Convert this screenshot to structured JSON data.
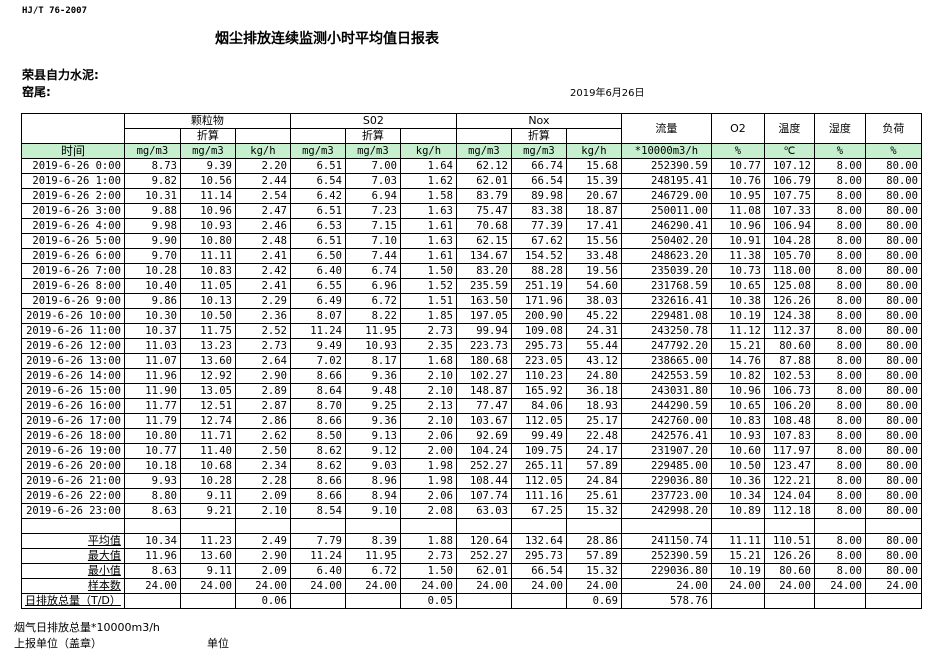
{
  "header": {
    "standard": "HJ/T  76-2007",
    "title": "烟尘排放连续监测小时平均值日报表",
    "company": "荣县自力水泥:",
    "kiln": "窑尾:",
    "date": "2019年6月26日"
  },
  "table": {
    "groups": {
      "pm": "颗粒物",
      "so2": "S02",
      "nox": "Nox",
      "flow": "流量",
      "o2": "O2",
      "temp": "温度",
      "humidity": "湿度",
      "load": "负荷",
      "converted": "折算"
    },
    "units": [
      "时间",
      "mg/m3",
      "mg/m3",
      "kg/h",
      "mg/m3",
      "mg/m3",
      "kg/h",
      "mg/m3",
      "mg/m3",
      "kg/h",
      "*10000m3/h",
      "%",
      "℃",
      "%",
      "%"
    ],
    "rows": [
      [
        "2019-6-26 0:00",
        "8.73",
        "9.39",
        "2.20",
        "6.51",
        "7.00",
        "1.64",
        "62.12",
        "66.74",
        "15.68",
        "252390.59",
        "10.77",
        "107.12",
        "8.00",
        "80.00"
      ],
      [
        "2019-6-26 1:00",
        "9.82",
        "10.56",
        "2.44",
        "6.54",
        "7.03",
        "1.62",
        "62.01",
        "66.54",
        "15.39",
        "248195.41",
        "10.76",
        "106.79",
        "8.00",
        "80.00"
      ],
      [
        "2019-6-26 2:00",
        "10.31",
        "11.14",
        "2.54",
        "6.42",
        "6.94",
        "1.58",
        "83.79",
        "89.98",
        "20.67",
        "246729.00",
        "10.95",
        "107.75",
        "8.00",
        "80.00"
      ],
      [
        "2019-6-26 3:00",
        "9.88",
        "10.96",
        "2.47",
        "6.51",
        "7.23",
        "1.63",
        "75.47",
        "83.38",
        "18.87",
        "250011.00",
        "11.08",
        "107.33",
        "8.00",
        "80.00"
      ],
      [
        "2019-6-26 4:00",
        "9.98",
        "10.93",
        "2.46",
        "6.53",
        "7.15",
        "1.61",
        "70.68",
        "77.39",
        "17.41",
        "246290.41",
        "10.96",
        "106.94",
        "8.00",
        "80.00"
      ],
      [
        "2019-6-26 5:00",
        "9.90",
        "10.80",
        "2.48",
        "6.51",
        "7.10",
        "1.63",
        "62.15",
        "67.62",
        "15.56",
        "250402.20",
        "10.91",
        "104.28",
        "8.00",
        "80.00"
      ],
      [
        "2019-6-26 6:00",
        "9.70",
        "11.11",
        "2.41",
        "6.50",
        "7.44",
        "1.61",
        "134.67",
        "154.52",
        "33.48",
        "248623.20",
        "11.38",
        "105.70",
        "8.00",
        "80.00"
      ],
      [
        "2019-6-26 7:00",
        "10.28",
        "10.83",
        "2.42",
        "6.40",
        "6.74",
        "1.50",
        "83.20",
        "88.28",
        "19.56",
        "235039.20",
        "10.73",
        "118.00",
        "8.00",
        "80.00"
      ],
      [
        "2019-6-26 8:00",
        "10.40",
        "11.05",
        "2.41",
        "6.55",
        "6.96",
        "1.52",
        "235.59",
        "251.19",
        "54.60",
        "231768.59",
        "10.65",
        "125.08",
        "8.00",
        "80.00"
      ],
      [
        "2019-6-26 9:00",
        "9.86",
        "10.13",
        "2.29",
        "6.49",
        "6.72",
        "1.51",
        "163.50",
        "171.96",
        "38.03",
        "232616.41",
        "10.38",
        "126.26",
        "8.00",
        "80.00"
      ],
      [
        "2019-6-26 10:00",
        "10.30",
        "10.50",
        "2.36",
        "8.07",
        "8.22",
        "1.85",
        "197.05",
        "200.90",
        "45.22",
        "229481.08",
        "10.19",
        "124.38",
        "8.00",
        "80.00"
      ],
      [
        "2019-6-26 11:00",
        "10.37",
        "11.75",
        "2.52",
        "11.24",
        "11.95",
        "2.73",
        "99.94",
        "109.08",
        "24.31",
        "243250.78",
        "11.12",
        "112.37",
        "8.00",
        "80.00"
      ],
      [
        "2019-6-26 12:00",
        "11.03",
        "13.23",
        "2.73",
        "9.49",
        "10.93",
        "2.35",
        "223.73",
        "295.73",
        "55.44",
        "247792.20",
        "15.21",
        "80.60",
        "8.00",
        "80.00"
      ],
      [
        "2019-6-26 13:00",
        "11.07",
        "13.60",
        "2.64",
        "7.02",
        "8.17",
        "1.68",
        "180.68",
        "223.05",
        "43.12",
        "238665.00",
        "14.76",
        "87.88",
        "8.00",
        "80.00"
      ],
      [
        "2019-6-26 14:00",
        "11.96",
        "12.92",
        "2.90",
        "8.66",
        "9.36",
        "2.10",
        "102.27",
        "110.23",
        "24.80",
        "242553.59",
        "10.82",
        "102.53",
        "8.00",
        "80.00"
      ],
      [
        "2019-6-26 15:00",
        "11.90",
        "13.05",
        "2.89",
        "8.64",
        "9.48",
        "2.10",
        "148.87",
        "165.92",
        "36.18",
        "243031.80",
        "10.96",
        "106.73",
        "8.00",
        "80.00"
      ],
      [
        "2019-6-26 16:00",
        "11.77",
        "12.51",
        "2.87",
        "8.70",
        "9.25",
        "2.13",
        "77.47",
        "84.06",
        "18.93",
        "244290.59",
        "10.65",
        "106.20",
        "8.00",
        "80.00"
      ],
      [
        "2019-6-26 17:00",
        "11.79",
        "12.74",
        "2.86",
        "8.66",
        "9.36",
        "2.10",
        "103.67",
        "112.05",
        "25.17",
        "242760.00",
        "10.83",
        "108.48",
        "8.00",
        "80.00"
      ],
      [
        "2019-6-26 18:00",
        "10.80",
        "11.71",
        "2.62",
        "8.50",
        "9.13",
        "2.06",
        "92.69",
        "99.49",
        "22.48",
        "242576.41",
        "10.93",
        "107.83",
        "8.00",
        "80.00"
      ],
      [
        "2019-6-26 19:00",
        "10.77",
        "11.40",
        "2.50",
        "8.62",
        "9.12",
        "2.00",
        "104.24",
        "109.75",
        "24.17",
        "231907.20",
        "10.60",
        "117.97",
        "8.00",
        "80.00"
      ],
      [
        "2019-6-26 20:00",
        "10.18",
        "10.68",
        "2.34",
        "8.62",
        "9.03",
        "1.98",
        "252.27",
        "265.11",
        "57.89",
        "229485.00",
        "10.50",
        "123.47",
        "8.00",
        "80.00"
      ],
      [
        "2019-6-26 21:00",
        "9.93",
        "10.28",
        "2.28",
        "8.66",
        "8.96",
        "1.98",
        "108.44",
        "112.05",
        "24.84",
        "229036.80",
        "10.36",
        "122.21",
        "8.00",
        "80.00"
      ],
      [
        "2019-6-26 22:00",
        "8.80",
        "9.11",
        "2.09",
        "8.66",
        "8.94",
        "2.06",
        "107.74",
        "111.16",
        "25.61",
        "237723.00",
        "10.34",
        "124.04",
        "8.00",
        "80.00"
      ],
      [
        "2019-6-26 23:00",
        "8.63",
        "9.21",
        "2.10",
        "8.54",
        "9.10",
        "2.08",
        "63.03",
        "67.25",
        "15.32",
        "242998.20",
        "10.89",
        "112.18",
        "8.00",
        "80.00"
      ]
    ],
    "summary": [
      [
        "平均值",
        "10.34",
        "11.23",
        "2.49",
        "7.79",
        "8.39",
        "1.88",
        "120.64",
        "132.64",
        "28.86",
        "241150.74",
        "11.11",
        "110.51",
        "8.00",
        "80.00"
      ],
      [
        "最大值",
        "11.96",
        "13.60",
        "2.90",
        "11.24",
        "11.95",
        "2.73",
        "252.27",
        "295.73",
        "57.89",
        "252390.59",
        "15.21",
        "126.26",
        "8.00",
        "80.00"
      ],
      [
        "最小值",
        "8.63",
        "9.11",
        "2.09",
        "6.40",
        "6.72",
        "1.50",
        "62.01",
        "66.54",
        "15.32",
        "229036.80",
        "10.19",
        "80.60",
        "8.00",
        "80.00"
      ],
      [
        "样本数",
        "24.00",
        "24.00",
        "24.00",
        "24.00",
        "24.00",
        "24.00",
        "24.00",
        "24.00",
        "24.00",
        "24.00",
        "24.00",
        "24.00",
        "24.00",
        "24.00"
      ],
      [
        "日排放总量（T/D）",
        "",
        "",
        "0.06",
        "",
        "",
        "0.05",
        "",
        "",
        "0.69",
        "578.76",
        "",
        "",
        "",
        ""
      ]
    ]
  },
  "footer": {
    "flue_total": "烟气日排放总量*10000m3/h",
    "reporter": "上报单位（盖章）",
    "unit": "单位"
  }
}
